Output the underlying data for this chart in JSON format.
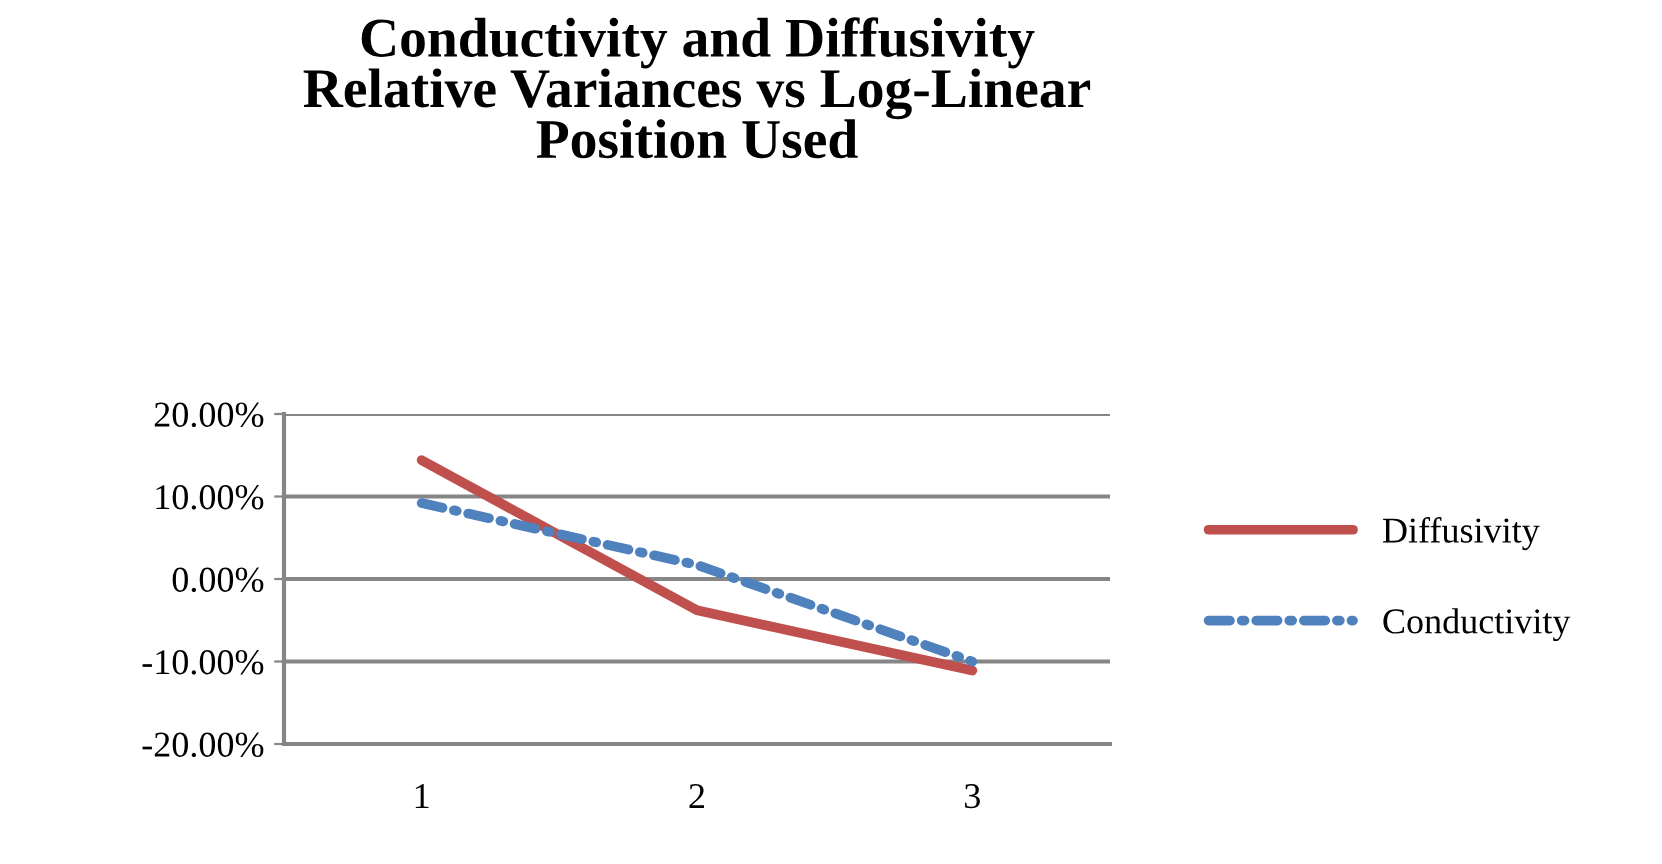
{
  "chart_data": {
    "type": "line",
    "title": "Conductivity and Diffusivity\nRelative Variances vs Log-Linear\nPosition Used",
    "categories": [
      "1",
      "2",
      "3"
    ],
    "series": [
      {
        "name": "Diffusivity",
        "color": "#c0504d",
        "line_style": "solid",
        "values": [
          14.4,
          -3.8,
          -11.1
        ]
      },
      {
        "name": "Conductivity",
        "color": "#4f81bd",
        "line_style": "dashed",
        "values": [
          9.2,
          1.7,
          -10.0
        ]
      }
    ],
    "ylim": [
      -20,
      20
    ],
    "yticks": [
      {
        "value": -20,
        "label": "-20.00%"
      },
      {
        "value": -10,
        "label": "-10.00%"
      },
      {
        "value": 0,
        "label": "0.00%"
      },
      {
        "value": 10,
        "label": "10.00%"
      },
      {
        "value": 20,
        "label": "20.00%"
      }
    ],
    "grid": "y",
    "legend": "right",
    "marker": "none"
  }
}
